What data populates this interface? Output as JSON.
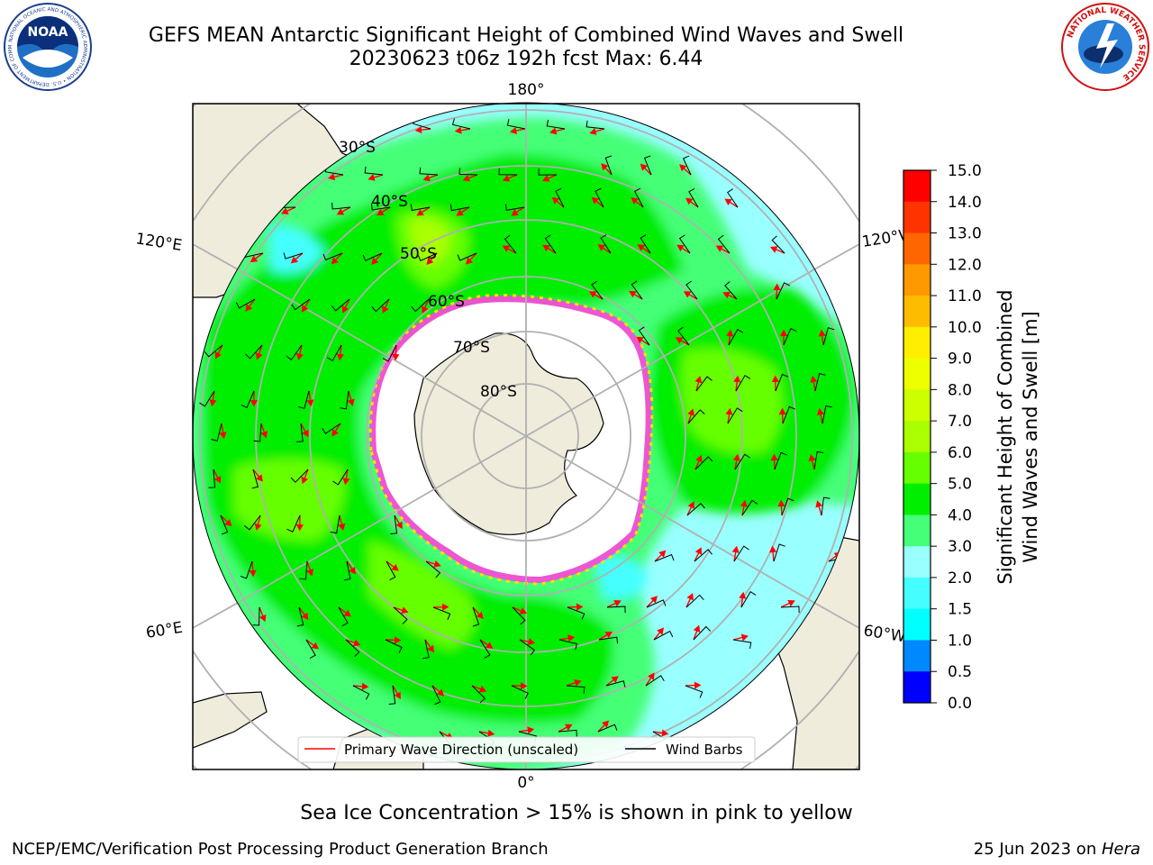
{
  "header": {
    "title_line1": "GEFS MEAN Antarctic Significant Height of Combined Wind Waves and Swell",
    "title_line2": "20230623 t06z 192h fcst   Max: 6.44"
  },
  "logos": {
    "left": {
      "name": "NOAA",
      "ring_text": "NATIONAL OCEANIC AND ATMOSPHERIC ADMINISTRATION • U.S. DEPARTMENT OF COMMERCE"
    },
    "right": {
      "name": "NATIONAL WEATHER SERVICE",
      "ring_text": "NATIONAL WEATHER SERVICE"
    }
  },
  "map": {
    "projection": "south-polar-stereographic",
    "longitude_labels": {
      "top": "180°",
      "bottom": "0°",
      "upper_left": "120°E",
      "lower_left": "60°E",
      "upper_right": "120°W",
      "lower_right": "60°W"
    },
    "latitude_labels": [
      "30°S",
      "40°S",
      "50°S",
      "60°S",
      "70°S",
      "80°S"
    ],
    "colors": {
      "land": "#efecdc",
      "gridline": "#b0b0b0",
      "wave_arrow": "#ff0000",
      "wind_barb": "#000000"
    },
    "legend": {
      "wave_direction": "Primary Wave Direction (unscaled)",
      "wind_barbs": "Wind Barbs"
    }
  },
  "colorbar": {
    "label_line1": "Significant Height of Combined",
    "label_line2": "Wind Waves and Swell [m]",
    "ticks": [
      "15.0",
      "14.0",
      "13.0",
      "12.0",
      "11.0",
      "10.0",
      "9.0",
      "8.0",
      "7.0",
      "6.0",
      "5.0",
      "4.0",
      "3.0",
      "2.0",
      "1.5",
      "1.0",
      "0.5",
      "0.0"
    ],
    "bands": [
      {
        "from": 14.0,
        "to": 15.0,
        "color": "#ff0000"
      },
      {
        "from": 13.0,
        "to": 14.0,
        "color": "#ff3300"
      },
      {
        "from": 12.0,
        "to": 13.0,
        "color": "#ff6600"
      },
      {
        "from": 11.0,
        "to": 12.0,
        "color": "#ff9900"
      },
      {
        "from": 10.0,
        "to": 11.0,
        "color": "#ffbb00"
      },
      {
        "from": 9.0,
        "to": 10.0,
        "color": "#ffee00"
      },
      {
        "from": 8.0,
        "to": 9.0,
        "color": "#eeff00"
      },
      {
        "from": 7.0,
        "to": 8.0,
        "color": "#ccff00"
      },
      {
        "from": 6.0,
        "to": 7.0,
        "color": "#aaff00"
      },
      {
        "from": 5.0,
        "to": 6.0,
        "color": "#66ff00"
      },
      {
        "from": 4.0,
        "to": 5.0,
        "color": "#00ee00"
      },
      {
        "from": 3.0,
        "to": 4.0,
        "color": "#44ff77"
      },
      {
        "from": 2.0,
        "to": 3.0,
        "color": "#99ffff"
      },
      {
        "from": 1.5,
        "to": 2.0,
        "color": "#44ffff"
      },
      {
        "from": 1.0,
        "to": 1.5,
        "color": "#00ffff"
      },
      {
        "from": 0.5,
        "to": 1.0,
        "color": "#0088ff"
      },
      {
        "from": 0.0,
        "to": 0.5,
        "color": "#0000ff"
      }
    ]
  },
  "note": "Sea Ice Concentration > 15% is shown in pink to yellow",
  "footer": {
    "left": "NCEP/EMC/Verification Post Processing Product Generation Branch",
    "right_date": "25 Jun 2023 on ",
    "right_host": "Hera"
  }
}
